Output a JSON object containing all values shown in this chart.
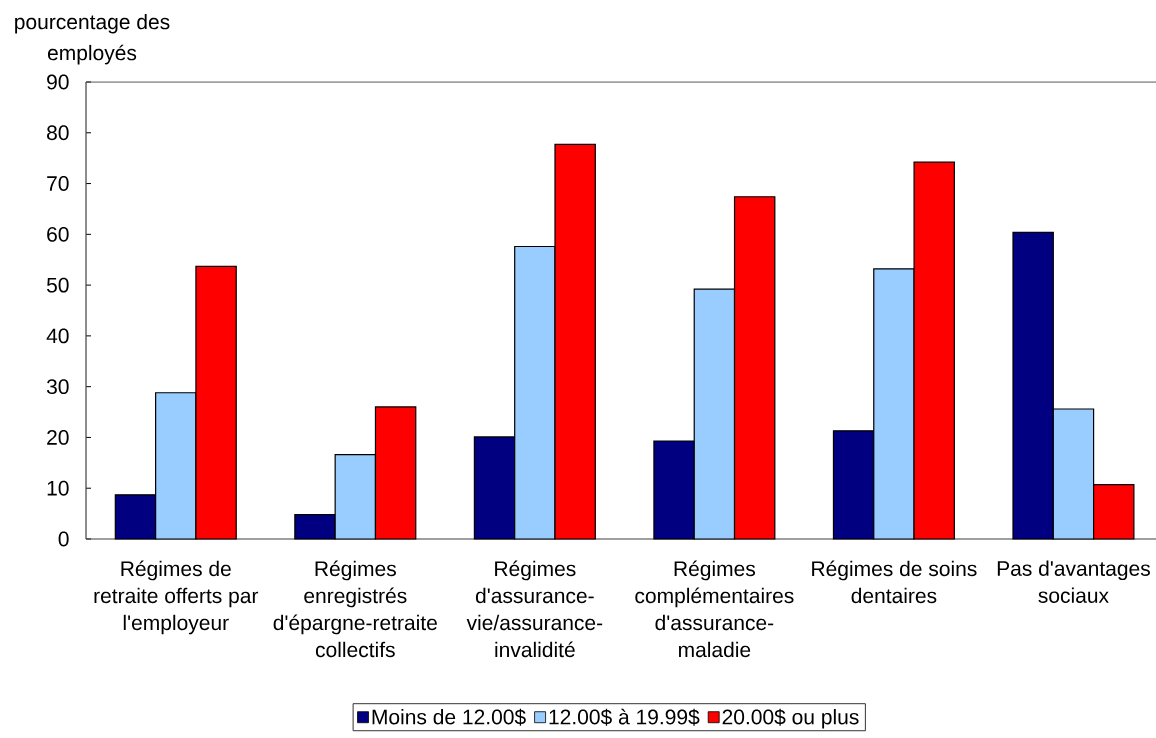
{
  "chart_data": {
    "type": "bar",
    "ylabel": "pourcentage des employés",
    "categories": [
      "Régimes de retraite offerts par l'employeur",
      "Régimes enregistrés d'épargne-retraite collectifs",
      "Régimes d'assurance-vie/assurance-invalidité",
      "Régimes complémentaires d'assurance-maladie",
      "Régimes de soins dentaires",
      "Pas d'avantages sociaux"
    ],
    "series": [
      {
        "name": "Moins de 12.00$",
        "color": "#000080",
        "values": [
          8.7,
          4.8,
          20.1,
          19.3,
          21.3,
          60.4
        ]
      },
      {
        "name": "12.00$ à 19.99$",
        "color": "#99ccff",
        "values": [
          28.8,
          16.6,
          57.6,
          49.2,
          53.2,
          25.6
        ]
      },
      {
        "name": "20.00$ ou plus",
        "color": "#ff0000",
        "values": [
          53.7,
          26.0,
          77.7,
          67.4,
          74.2,
          10.7
        ]
      }
    ],
    "ylim": [
      0,
      90
    ],
    "yticks": [
      0,
      10,
      20,
      30,
      40,
      50,
      60,
      70,
      80,
      90
    ],
    "legend": "bottom"
  }
}
